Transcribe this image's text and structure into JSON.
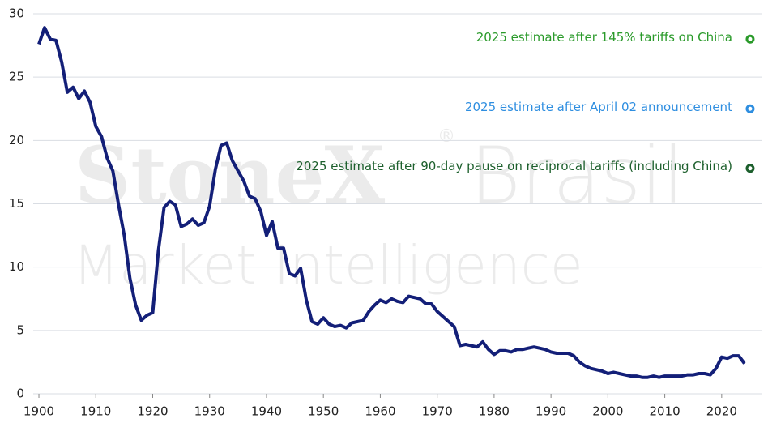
{
  "chart_data": {
    "type": "line",
    "watermark": {
      "brand": "StoneX",
      "mark": "®",
      "region": "Brasil",
      "unit": "Market Intelligence"
    },
    "x": [
      1900,
      1901,
      1902,
      1903,
      1904,
      1905,
      1906,
      1907,
      1908,
      1909,
      1910,
      1911,
      1912,
      1913,
      1914,
      1915,
      1916,
      1917,
      1918,
      1919,
      1920,
      1921,
      1922,
      1923,
      1924,
      1925,
      1926,
      1927,
      1928,
      1929,
      1930,
      1931,
      1932,
      1933,
      1934,
      1935,
      1936,
      1937,
      1938,
      1939,
      1940,
      1941,
      1942,
      1943,
      1944,
      1945,
      1946,
      1947,
      1948,
      1949,
      1950,
      1951,
      1952,
      1953,
      1954,
      1955,
      1956,
      1957,
      1958,
      1959,
      1960,
      1961,
      1962,
      1963,
      1964,
      1965,
      1966,
      1967,
      1968,
      1969,
      1970,
      1971,
      1972,
      1973,
      1974,
      1975,
      1976,
      1977,
      1978,
      1979,
      1980,
      1981,
      1982,
      1983,
      1984,
      1985,
      1986,
      1987,
      1988,
      1989,
      1990,
      1991,
      1992,
      1993,
      1994,
      1995,
      1996,
      1997,
      1998,
      1999,
      2000,
      2001,
      2002,
      2003,
      2004,
      2005,
      2006,
      2007,
      2008,
      2009,
      2010,
      2011,
      2012,
      2013,
      2014,
      2015,
      2016,
      2017,
      2018,
      2019,
      2020,
      2021,
      2022,
      2023,
      2024
    ],
    "series": [
      {
        "color": "#131f78",
        "values": [
          27.6,
          28.9,
          28.0,
          27.9,
          26.2,
          23.8,
          24.2,
          23.3,
          23.9,
          23.0,
          21.1,
          20.3,
          18.6,
          17.6,
          14.9,
          12.5,
          9.1,
          7.0,
          5.8,
          6.2,
          6.4,
          11.3,
          14.7,
          15.2,
          14.9,
          13.2,
          13.4,
          13.8,
          13.3,
          13.5,
          14.8,
          17.7,
          19.6,
          19.8,
          18.4,
          17.6,
          16.8,
          15.6,
          15.4,
          14.4,
          12.5,
          13.6,
          11.5,
          11.5,
          9.5,
          9.3,
          9.9,
          7.4,
          5.7,
          5.5,
          6.0,
          5.5,
          5.3,
          5.4,
          5.2,
          5.6,
          5.7,
          5.8,
          6.5,
          7.0,
          7.4,
          7.2,
          7.5,
          7.3,
          7.2,
          7.7,
          7.6,
          7.5,
          7.1,
          7.1,
          6.5,
          6.1,
          5.7,
          5.3,
          3.8,
          3.9,
          3.8,
          3.7,
          4.1,
          3.5,
          3.1,
          3.4,
          3.4,
          3.3,
          3.5,
          3.5,
          3.6,
          3.7,
          3.6,
          3.5,
          3.3,
          3.2,
          3.2,
          3.2,
          3.0,
          2.5,
          2.2,
          2.0,
          1.9,
          1.8,
          1.6,
          1.7,
          1.6,
          1.5,
          1.4,
          1.4,
          1.3,
          1.3,
          1.4,
          1.3,
          1.4,
          1.4,
          1.4,
          1.4,
          1.5,
          1.5,
          1.6,
          1.6,
          1.5,
          2.0,
          2.9,
          2.8,
          3.0,
          3.0,
          2.4
        ]
      }
    ],
    "annotations": [
      {
        "label": "2025 estimate after 145% tariffs on China",
        "x": 2025,
        "value": 28.0,
        "color": "#2a9a2a"
      },
      {
        "label": "2025 estimate after April 02 announcement",
        "x": 2025,
        "value": 22.5,
        "color": "#2e8ee0"
      },
      {
        "label": "2025 estimate after 90-day pause on reciprocal tariffs (including China)",
        "x": 2025,
        "value": 17.8,
        "color": "#1c5f2c"
      }
    ],
    "xlim": [
      1899,
      2027
    ],
    "xticks": [
      1900,
      1910,
      1920,
      1930,
      1940,
      1950,
      1960,
      1970,
      1980,
      1990,
      2000,
      2010,
      2020
    ],
    "ylim": [
      0,
      30
    ],
    "yticks": [
      0,
      5,
      10,
      15,
      20,
      25,
      30
    ],
    "grid": true
  }
}
